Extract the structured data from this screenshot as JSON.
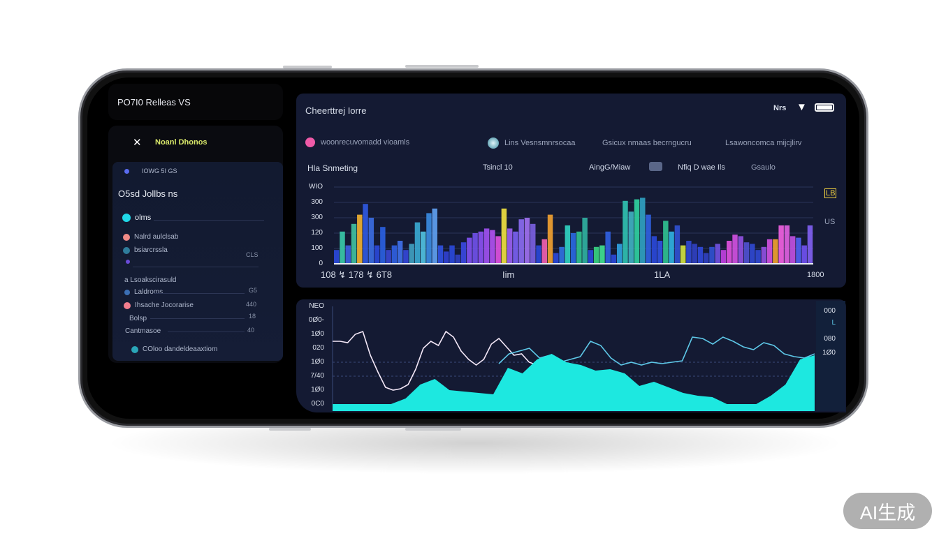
{
  "sidebar": {
    "app_title": "PO7I0  Relleas VS",
    "menu_title": "Noanl Dhonos",
    "status_line": "IOWG 5I GS",
    "section_title": "O5sd Jollbs ns",
    "group_label": "olms",
    "items": [
      {
        "label": "Nalrd aulclsab",
        "value": "",
        "color": "#f08a86"
      },
      {
        "label": "bsiarcrssla",
        "value": "CLS",
        "color": "#2f7d9c"
      },
      {
        "label": "",
        "value": "",
        "color": "#6a4bd8"
      },
      {
        "label": "a Lsoakscirasuld",
        "value": "",
        "color": ""
      },
      {
        "label": "Laldroms",
        "value": "G5",
        "color": "#3b6fb5"
      },
      {
        "label": "Ihsache Jocorarise",
        "value": "440",
        "color": "#f27d8e"
      },
      {
        "label": "Bolsp",
        "value": "18",
        "color": ""
      },
      {
        "label": "Cantmasoe",
        "value": "40",
        "color": ""
      },
      {
        "label": "COloo dandeldeaaxtiom",
        "value": "",
        "color": "#2aa6b8"
      }
    ]
  },
  "top_panel": {
    "title": "Cheerttrej Iorre",
    "status_text": "Nrs",
    "legend": [
      {
        "label": "woonrecuvomadd vioamls",
        "color": "#ef5aa8",
        "icon": "dot"
      },
      {
        "label": "Lins Vesnsmnrsocaa",
        "color": "#7fd0e0",
        "icon": "globe-icon"
      },
      {
        "label": "Gsicux nmaas becrngucru",
        "color": "",
        "icon": ""
      },
      {
        "label": "Lsawoncomca mijcjlirv",
        "color": "",
        "icon": ""
      }
    ],
    "header_row": [
      "Hla Snmeting",
      "Tsincl 10",
      "AingG/Miaw",
      "Nfiq D wae Ils",
      "Gsaulo"
    ]
  },
  "chart_data": [
    {
      "type": "bar",
      "title": "",
      "y_tick_labels": [
        "0",
        "100",
        "120",
        "300",
        "300",
        "WIO"
      ],
      "ylim": [
        0,
        500
      ],
      "x_tick_labels": [
        "108 ↯ 178 ↯ 6T8",
        "Iim",
        "1LA",
        "1800"
      ],
      "right_labels": [
        "LB",
        "US"
      ],
      "values": [
        90,
        210,
        120,
        260,
        320,
        390,
        300,
        120,
        240,
        90,
        120,
        150,
        90,
        130,
        270,
        210,
        330,
        360,
        120,
        80,
        120,
        60,
        140,
        170,
        200,
        210,
        230,
        220,
        180,
        360,
        230,
        210,
        290,
        300,
        260,
        120,
        160,
        320,
        70,
        110,
        250,
        200,
        210,
        300,
        90,
        110,
        120,
        210,
        60,
        130,
        410,
        340,
        420,
        430,
        320,
        180,
        150,
        280,
        210,
        250,
        120,
        150,
        130,
        110,
        70,
        110,
        130,
        90,
        150,
        190,
        180,
        140,
        130,
        90,
        110,
        160,
        160,
        250,
        250,
        180,
        170,
        120,
        250
      ],
      "colors": [
        "#2a48d8",
        "#3ac8a8",
        "#3d60e0",
        "#40c0a0",
        "#f0b030",
        "#2f58e0",
        "#3b6be0",
        "#2a48d8",
        "#2a60e0",
        "#3846d0",
        "#3060e0",
        "#4070e8",
        "#3446d8",
        "#40a0c0",
        "#3aa8d0",
        "#50c0e0",
        "#3a8ae0",
        "#60a0f0",
        "#3050e0",
        "#3040d0",
        "#2a48d8",
        "#3040c0",
        "#3a48e0",
        "#8050f0",
        "#7050e8",
        "#8a50f0",
        "#a050f0",
        "#b050f0",
        "#e050e0",
        "#f0e040",
        "#9a60f0",
        "#7a60f0",
        "#8a6af0",
        "#a070f0",
        "#7a60e0",
        "#2a48d8",
        "#f060b0",
        "#f0a030",
        "#2a48d8",
        "#3070e0",
        "#30d0c0",
        "#2a68e0",
        "#30c090",
        "#30b0a0",
        "#2a48d8",
        "#38d080",
        "#40e090",
        "#3060e0",
        "#2a48d8",
        "#30a0e0",
        "#30c0b0",
        "#40b0c0",
        "#30d0a0",
        "#30a0c0",
        "#3060e0",
        "#2a48d8",
        "#3050e0",
        "#30c090",
        "#30b0e0",
        "#3050d0",
        "#d0e040",
        "#3048d0",
        "#3040c0",
        "#3048d8",
        "#3040c0",
        "#3050d0",
        "#7050e0",
        "#c040e0",
        "#e050e0",
        "#d050e0",
        "#9050e0",
        "#5050d0",
        "#3048d0",
        "#3048d0",
        "#9050e0",
        "#d050e0",
        "#f0a030",
        "#f060e0",
        "#e060e0",
        "#c050e0",
        "#5060f0",
        "#7050f0",
        "#8060f0"
      ]
    },
    {
      "type": "line",
      "title": "",
      "y_tick_labels": [
        "0C0",
        "1Ø0",
        "7/40",
        "1Ø0",
        "020",
        "1Ø0",
        "0Ø0-",
        "NEO"
      ],
      "ylim": [
        0,
        700
      ],
      "right_labels": [
        "000",
        "L",
        "080",
        "1Ø0"
      ],
      "series": [
        {
          "color": "#f4e8f8",
          "values": [
            450,
            450,
            440,
            500,
            520,
            350,
            230,
            120,
            100,
            110,
            140,
            250,
            400,
            450,
            420,
            520,
            480,
            380,
            320,
            280,
            320,
            430,
            470,
            410,
            350,
            360,
            300,
            280,
            290
          ]
        },
        {
          "color": "#5ec8e8",
          "values": [
            290,
            360,
            380,
            400,
            330,
            350,
            300,
            320,
            340,
            450,
            420,
            330,
            280,
            300,
            280,
            300,
            290,
            300,
            310,
            480,
            470,
            430,
            480,
            450,
            410,
            390,
            440,
            420,
            360,
            340,
            330,
            360
          ]
        },
        {
          "color": "#1de8e0",
          "area": true,
          "values": [
            0,
            0,
            0,
            0,
            0,
            40,
            140,
            180,
            100,
            90,
            80,
            70,
            260,
            220,
            320,
            360,
            300,
            280,
            240,
            250,
            220,
            130,
            160,
            120,
            80,
            60,
            50,
            0,
            0,
            0,
            60,
            140,
            320,
            350
          ]
        }
      ]
    }
  ],
  "watermark": "AI生成"
}
